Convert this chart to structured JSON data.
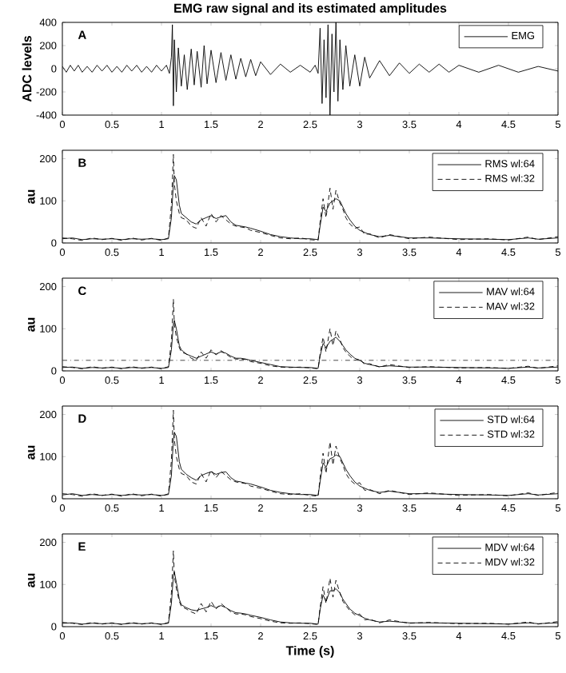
{
  "chart_data": [
    {
      "type": "line",
      "title": "EMG raw signal and its estimated amplitudes",
      "ylabel": "ADC levels",
      "annotations": [
        "A"
      ],
      "legend": "top right",
      "xlim": [
        0,
        5
      ],
      "xticks": [
        0,
        0.5,
        1,
        1.5,
        2,
        2.5,
        3,
        3.5,
        4,
        4.5,
        5
      ],
      "ylim": [
        -400,
        400
      ],
      "yticks": [
        -400,
        -200,
        0,
        200,
        400
      ],
      "x": [
        0,
        0.04,
        0.08,
        0.12,
        0.16,
        0.2,
        0.25,
        0.3,
        0.35,
        0.4,
        0.45,
        0.5,
        0.55,
        0.6,
        0.65,
        0.7,
        0.75,
        0.8,
        0.85,
        0.9,
        0.95,
        1.0,
        1.05,
        1.08,
        1.1,
        1.11,
        1.12,
        1.13,
        1.15,
        1.17,
        1.2,
        1.23,
        1.26,
        1.3,
        1.33,
        1.36,
        1.4,
        1.43,
        1.46,
        1.5,
        1.55,
        1.6,
        1.65,
        1.7,
        1.75,
        1.8,
        1.85,
        1.9,
        1.95,
        2.0,
        2.1,
        2.2,
        2.3,
        2.4,
        2.5,
        2.55,
        2.58,
        2.6,
        2.62,
        2.64,
        2.66,
        2.68,
        2.7,
        2.72,
        2.74,
        2.76,
        2.78,
        2.8,
        2.83,
        2.86,
        2.9,
        2.95,
        3.0,
        3.05,
        3.1,
        3.2,
        3.3,
        3.4,
        3.5,
        3.6,
        3.7,
        3.8,
        3.9,
        4.0,
        4.2,
        4.4,
        4.6,
        4.8,
        5.0
      ],
      "series": [
        {
          "name": "EMG",
          "color": "#000000",
          "line_style": "solid",
          "values": [
            20,
            -30,
            30,
            -20,
            30,
            -30,
            20,
            -30,
            30,
            -20,
            30,
            -30,
            20,
            -30,
            30,
            -20,
            30,
            -30,
            20,
            -30,
            30,
            -20,
            30,
            -40,
            100,
            380,
            -320,
            250,
            -200,
            180,
            -150,
            120,
            -180,
            170,
            -140,
            150,
            -160,
            200,
            -130,
            160,
            -120,
            140,
            -100,
            120,
            -90,
            90,
            -70,
            80,
            -60,
            60,
            -50,
            40,
            -30,
            30,
            -30,
            30,
            -40,
            350,
            -300,
            250,
            -250,
            380,
            -400,
            300,
            -200,
            400,
            -280,
            250,
            -180,
            200,
            -150,
            120,
            -150,
            100,
            -80,
            70,
            -60,
            50,
            -40,
            40,
            -30,
            40,
            -30,
            30,
            -30,
            30,
            -30,
            20,
            -20
          ]
        }
      ]
    },
    {
      "type": "line",
      "ylabel": "au",
      "annotations": [
        "B"
      ],
      "legend": "top right",
      "xlim": [
        0,
        5
      ],
      "xticks": [
        0,
        0.5,
        1,
        1.5,
        2,
        2.5,
        3,
        3.5,
        4,
        4.5,
        5
      ],
      "ylim": [
        0,
        220
      ],
      "yticks": [
        0,
        100,
        200
      ],
      "x": [
        0,
        0.1,
        0.2,
        0.3,
        0.4,
        0.5,
        0.6,
        0.7,
        0.8,
        0.9,
        1.0,
        1.07,
        1.1,
        1.12,
        1.13,
        1.15,
        1.18,
        1.2,
        1.25,
        1.3,
        1.35,
        1.4,
        1.45,
        1.5,
        1.55,
        1.6,
        1.65,
        1.7,
        1.75,
        1.8,
        1.85,
        1.9,
        2.0,
        2.1,
        2.2,
        2.3,
        2.4,
        2.5,
        2.58,
        2.6,
        2.63,
        2.66,
        2.7,
        2.73,
        2.76,
        2.8,
        2.83,
        2.86,
        2.9,
        2.95,
        3.0,
        3.05,
        3.1,
        3.2,
        3.3,
        3.5,
        3.7,
        4.0,
        4.3,
        4.5,
        4.7,
        4.8,
        5.0
      ],
      "series": [
        {
          "name": "RMS wl:64",
          "color": "#000000",
          "line_style": "solid",
          "values": [
            10,
            12,
            8,
            10,
            9,
            10,
            8,
            10,
            9,
            10,
            8,
            10,
            60,
            140,
            160,
            150,
            90,
            70,
            60,
            50,
            45,
            55,
            60,
            65,
            58,
            62,
            65,
            50,
            42,
            40,
            38,
            35,
            28,
            20,
            15,
            12,
            10,
            10,
            8,
            40,
            85,
            75,
            95,
            100,
            105,
            100,
            85,
            70,
            55,
            40,
            30,
            25,
            20,
            15,
            18,
            12,
            12,
            10,
            9,
            8,
            12,
            9,
            12
          ]
        },
        {
          "name": "RMS wl:32",
          "color": "#000000",
          "line_style": "dashed",
          "values": [
            12,
            10,
            6,
            12,
            8,
            11,
            6,
            12,
            7,
            11,
            6,
            12,
            90,
            210,
            140,
            100,
            70,
            60,
            55,
            40,
            35,
            60,
            40,
            70,
            50,
            65,
            55,
            45,
            40,
            38,
            36,
            30,
            25,
            18,
            12,
            10,
            12,
            8,
            6,
            50,
            105,
            60,
            130,
            80,
            125,
            95,
            80,
            60,
            45,
            35,
            38,
            20,
            22,
            12,
            20,
            10,
            14,
            8,
            10,
            7,
            14,
            8,
            15
          ]
        }
      ]
    },
    {
      "type": "line",
      "ylabel": "au",
      "annotations": [
        "C"
      ],
      "legend": "top right",
      "xlim": [
        0,
        5
      ],
      "xticks": [
        0,
        0.5,
        1,
        1.5,
        2,
        2.5,
        3,
        3.5,
        4,
        4.5,
        5
      ],
      "ylim": [
        0,
        220
      ],
      "yticks": [
        0,
        100,
        200
      ],
      "ref_lines": [
        {
          "axis": "y",
          "value": 25,
          "color": "#333333",
          "line_style": "dashdot"
        }
      ],
      "x": [
        0,
        0.1,
        0.2,
        0.3,
        0.4,
        0.5,
        0.6,
        0.7,
        0.8,
        0.9,
        1.0,
        1.07,
        1.1,
        1.12,
        1.13,
        1.15,
        1.18,
        1.2,
        1.25,
        1.3,
        1.35,
        1.4,
        1.45,
        1.5,
        1.55,
        1.6,
        1.65,
        1.7,
        1.75,
        1.8,
        1.85,
        1.9,
        2.0,
        2.1,
        2.2,
        2.3,
        2.4,
        2.5,
        2.58,
        2.6,
        2.63,
        2.66,
        2.7,
        2.73,
        2.76,
        2.8,
        2.83,
        2.86,
        2.9,
        2.95,
        3.0,
        3.05,
        3.1,
        3.2,
        3.3,
        3.5,
        3.7,
        4.0,
        4.3,
        4.5,
        4.7,
        4.8,
        5.0
      ],
      "series": [
        {
          "name": "MAV wl:64",
          "color": "#000000",
          "line_style": "solid",
          "values": [
            8,
            9,
            6,
            8,
            7,
            8,
            6,
            8,
            7,
            8,
            6,
            8,
            50,
            110,
            120,
            100,
            60,
            50,
            40,
            35,
            30,
            35,
            40,
            45,
            40,
            45,
            42,
            35,
            30,
            30,
            28,
            25,
            20,
            15,
            10,
            9,
            8,
            8,
            6,
            35,
            65,
            55,
            70,
            75,
            80,
            70,
            60,
            50,
            40,
            30,
            25,
            18,
            15,
            10,
            12,
            9,
            9,
            8,
            7,
            6,
            9,
            7,
            9
          ]
        },
        {
          "name": "MAV wl:32",
          "color": "#000000",
          "line_style": "dashed",
          "values": [
            10,
            8,
            5,
            10,
            6,
            9,
            5,
            10,
            6,
            9,
            5,
            10,
            70,
            170,
            110,
            80,
            55,
            45,
            40,
            30,
            25,
            45,
            30,
            50,
            38,
            48,
            40,
            32,
            28,
            28,
            27,
            22,
            18,
            12,
            9,
            8,
            9,
            7,
            5,
            40,
            80,
            45,
            100,
            60,
            95,
            75,
            55,
            45,
            35,
            25,
            28,
            15,
            17,
            9,
            15,
            8,
            10,
            7,
            8,
            6,
            11,
            6,
            12
          ]
        }
      ]
    },
    {
      "type": "line",
      "ylabel": "au",
      "annotations": [
        "D"
      ],
      "legend": "top right",
      "xlim": [
        0,
        5
      ],
      "xticks": [
        0,
        0.5,
        1,
        1.5,
        2,
        2.5,
        3,
        3.5,
        4,
        4.5,
        5
      ],
      "ylim": [
        0,
        220
      ],
      "yticks": [
        0,
        100,
        200
      ],
      "x": [
        0,
        0.1,
        0.2,
        0.3,
        0.4,
        0.5,
        0.6,
        0.7,
        0.8,
        0.9,
        1.0,
        1.07,
        1.1,
        1.12,
        1.13,
        1.15,
        1.18,
        1.2,
        1.25,
        1.3,
        1.35,
        1.4,
        1.45,
        1.5,
        1.55,
        1.6,
        1.65,
        1.7,
        1.75,
        1.8,
        1.85,
        1.9,
        2.0,
        2.1,
        2.2,
        2.3,
        2.4,
        2.5,
        2.58,
        2.6,
        2.63,
        2.66,
        2.7,
        2.73,
        2.76,
        2.8,
        2.83,
        2.86,
        2.9,
        2.95,
        3.0,
        3.05,
        3.1,
        3.2,
        3.3,
        3.5,
        3.7,
        4.0,
        4.3,
        4.5,
        4.7,
        4.8,
        5.0
      ],
      "series": [
        {
          "name": "STD wl:64",
          "color": "#000000",
          "line_style": "solid",
          "values": [
            9,
            12,
            8,
            10,
            8,
            10,
            8,
            10,
            9,
            10,
            8,
            10,
            55,
            140,
            158,
            148,
            88,
            70,
            58,
            50,
            44,
            55,
            60,
            64,
            58,
            62,
            64,
            50,
            42,
            40,
            37,
            35,
            28,
            20,
            15,
            12,
            10,
            10,
            8,
            40,
            85,
            75,
            95,
            98,
            104,
            100,
            85,
            70,
            55,
            40,
            30,
            25,
            20,
            15,
            18,
            12,
            12,
            10,
            9,
            8,
            12,
            9,
            12
          ]
        },
        {
          "name": "STD wl:32",
          "color": "#000000",
          "line_style": "dashed",
          "values": [
            12,
            10,
            6,
            12,
            8,
            11,
            6,
            12,
            7,
            11,
            6,
            12,
            90,
            210,
            140,
            100,
            70,
            60,
            55,
            40,
            35,
            60,
            40,
            68,
            50,
            65,
            55,
            45,
            40,
            38,
            36,
            30,
            25,
            18,
            12,
            10,
            12,
            8,
            6,
            50,
            108,
            60,
            135,
            80,
            125,
            95,
            80,
            60,
            45,
            35,
            38,
            20,
            22,
            12,
            20,
            10,
            14,
            8,
            10,
            7,
            14,
            8,
            15
          ]
        }
      ]
    },
    {
      "type": "line",
      "xlabel": "Time (s)",
      "ylabel": "au",
      "annotations": [
        "E"
      ],
      "legend": "top right",
      "xlim": [
        0,
        5
      ],
      "xticks": [
        0,
        0.5,
        1,
        1.5,
        2,
        2.5,
        3,
        3.5,
        4,
        4.5,
        5
      ],
      "ylim": [
        0,
        220
      ],
      "yticks": [
        0,
        100,
        200
      ],
      "x": [
        0,
        0.1,
        0.2,
        0.3,
        0.4,
        0.5,
        0.6,
        0.7,
        0.8,
        0.9,
        1.0,
        1.07,
        1.1,
        1.12,
        1.13,
        1.15,
        1.18,
        1.2,
        1.25,
        1.3,
        1.35,
        1.4,
        1.45,
        1.5,
        1.55,
        1.6,
        1.65,
        1.7,
        1.75,
        1.8,
        1.85,
        1.9,
        2.0,
        2.1,
        2.2,
        2.3,
        2.4,
        2.5,
        2.58,
        2.6,
        2.63,
        2.66,
        2.7,
        2.73,
        2.76,
        2.8,
        2.83,
        2.86,
        2.9,
        2.95,
        3.0,
        3.05,
        3.1,
        3.2,
        3.3,
        3.5,
        3.7,
        4.0,
        4.3,
        4.5,
        4.7,
        4.8,
        5.0
      ],
      "series": [
        {
          "name": "MDV wl:64",
          "color": "#000000",
          "line_style": "solid",
          "values": [
            8,
            9,
            6,
            8,
            7,
            8,
            6,
            8,
            7,
            8,
            6,
            8,
            55,
            120,
            130,
            105,
            65,
            52,
            45,
            40,
            38,
            42,
            45,
            50,
            45,
            50,
            45,
            38,
            33,
            32,
            30,
            27,
            22,
            16,
            11,
            9,
            8,
            8,
            6,
            40,
            75,
            60,
            85,
            85,
            90,
            80,
            65,
            55,
            42,
            32,
            26,
            20,
            16,
            11,
            13,
            9,
            9,
            8,
            7,
            6,
            9,
            7,
            9
          ]
        },
        {
          "name": "MDV wl:32",
          "color": "#000000",
          "line_style": "dashed",
          "values": [
            10,
            8,
            5,
            10,
            6,
            9,
            5,
            10,
            6,
            9,
            5,
            10,
            80,
            180,
            120,
            90,
            60,
            48,
            42,
            35,
            30,
            55,
            35,
            60,
            42,
            55,
            45,
            35,
            30,
            30,
            28,
            24,
            19,
            13,
            9,
            8,
            9,
            7,
            5,
            45,
            95,
            55,
            115,
            70,
            110,
            80,
            60,
            50,
            38,
            28,
            30,
            16,
            18,
            9,
            16,
            8,
            10,
            7,
            8,
            6,
            11,
            6,
            12
          ]
        }
      ]
    }
  ]
}
